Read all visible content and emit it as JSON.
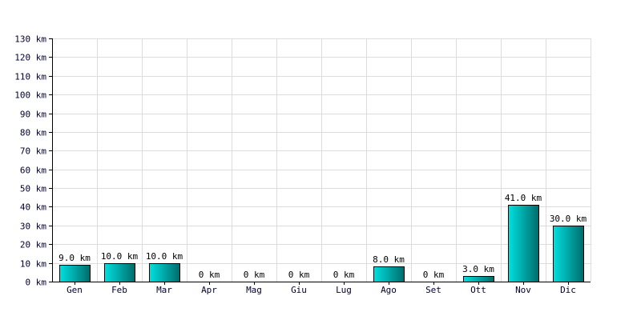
{
  "chart_data": {
    "type": "bar",
    "categories": [
      "Gen",
      "Feb",
      "Mar",
      "Apr",
      "Mag",
      "Giu",
      "Lug",
      "Ago",
      "Set",
      "Ott",
      "Nov",
      "Dic"
    ],
    "values": [
      9.0,
      10.0,
      10.0,
      0,
      0,
      0,
      0,
      8.0,
      0,
      3.0,
      41.0,
      30.0
    ],
    "value_labels": [
      "9.0 km",
      "10.0 km",
      "10.0 km",
      "0 km",
      "0 km",
      "0 km",
      "0 km",
      "8.0 km",
      "0 km",
      "3.0 km",
      "41.0 km",
      "30.0 km"
    ],
    "y_ticks": [
      0,
      10,
      20,
      30,
      40,
      50,
      60,
      70,
      80,
      90,
      100,
      110,
      120,
      130
    ],
    "y_tick_labels": [
      "0 km",
      "10 km",
      "20 km",
      "30 km",
      "40 km",
      "50 km",
      "60 km",
      "70 km",
      "80 km",
      "90 km",
      "100 km",
      "110 km",
      "120 km",
      "130 km"
    ],
    "ylim": [
      0,
      130
    ],
    "title": "",
    "xlabel": "",
    "ylabel": "",
    "grid": true,
    "colors": {
      "bar_light": "#00e0e0",
      "bar_dark": "#006b6b",
      "grid": "#dddddd"
    }
  }
}
